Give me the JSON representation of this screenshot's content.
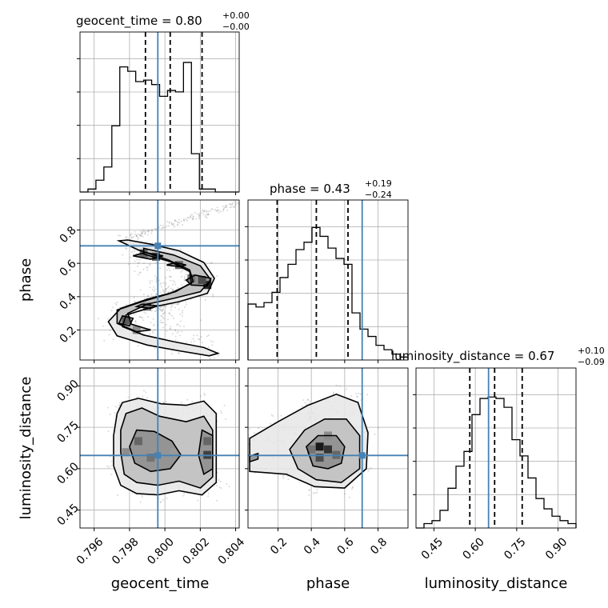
{
  "colors": {
    "truth": "#4682b4",
    "density": "#000000",
    "grid": "#b0b0b0"
  },
  "chart_data": {
    "type": "corner",
    "parameters": [
      "geocent_time",
      "phase",
      "luminosity_distance"
    ],
    "truths": {
      "geocent_time": 0.7996,
      "phase": 0.705,
      "luminosity_distance": 0.648
    },
    "ranges": {
      "geocent_time": [
        0.7952,
        0.8042
      ],
      "phase": [
        0.02,
        0.98
      ],
      "luminosity_distance": [
        0.385,
        0.965
      ]
    },
    "ticks": {
      "geocent_time": [
        "0.796",
        "0.798",
        "0.800",
        "0.802",
        "0.804"
      ],
      "phase": [
        "0.2",
        "0.4",
        "0.6",
        "0.8"
      ],
      "luminosity_distance": [
        "0.45",
        "0.60",
        "0.75",
        "0.90"
      ]
    },
    "titles": [
      {
        "param": "geocent_time",
        "name": "geocent_time",
        "median": "0.80",
        "plus": "+0.00",
        "minus": "−0.00"
      },
      {
        "param": "phase",
        "name": "phase",
        "median": "0.43",
        "plus": "+0.19",
        "minus": "−0.24"
      },
      {
        "param": "luminosity_distance",
        "name": "luminosity_distance",
        "median": "0.67",
        "plus": "+0.10",
        "minus": "−0.09"
      }
    ],
    "quantiles": {
      "geocent_time": [
        0.7989,
        0.8003,
        0.8021
      ],
      "phase": [
        0.195,
        0.43,
        0.62
      ],
      "luminosity_distance": [
        0.58,
        0.67,
        0.77
      ]
    },
    "histograms": {
      "geocent_time": {
        "edges": [
          0.7952,
          0.79565,
          0.7961,
          0.79655,
          0.797,
          0.79745,
          0.7979,
          0.79835,
          0.7988,
          0.79925,
          0.7997,
          0.80015,
          0.8006,
          0.80105,
          0.8015,
          0.80195,
          0.8024,
          0.80285,
          0.8033,
          0.80375,
          0.8042
        ],
        "counts": [
          0,
          0.02,
          0.08,
          0.17,
          0.45,
          0.85,
          0.82,
          0.75,
          0.76,
          0.73,
          0.65,
          0.69,
          0.68,
          0.88,
          0.26,
          0.02,
          0.02,
          0,
          0,
          0
        ]
      },
      "phase": {
        "edges": [
          0.02,
          0.068,
          0.116,
          0.164,
          0.212,
          0.26,
          0.308,
          0.356,
          0.404,
          0.452,
          0.5,
          0.548,
          0.596,
          0.644,
          0.692,
          0.74,
          0.788,
          0.836,
          0.884,
          0.932,
          0.98
        ],
        "counts": [
          0.38,
          0.36,
          0.39,
          0.46,
          0.56,
          0.65,
          0.75,
          0.8,
          0.9,
          0.84,
          0.76,
          0.69,
          0.65,
          0.32,
          0.21,
          0.16,
          0.1,
          0.07,
          0.04,
          0.02
        ]
      },
      "luminosity_distance": {
        "edges": [
          0.385,
          0.414,
          0.443,
          0.472,
          0.501,
          0.53,
          0.559,
          0.588,
          0.617,
          0.646,
          0.675,
          0.704,
          0.733,
          0.762,
          0.791,
          0.82,
          0.849,
          0.878,
          0.907,
          0.936,
          0.965
        ],
        "counts": [
          0,
          0.03,
          0.05,
          0.12,
          0.27,
          0.42,
          0.52,
          0.77,
          0.88,
          0.89,
          0.88,
          0.82,
          0.6,
          0.49,
          0.34,
          0.2,
          0.13,
          0.08,
          0.05,
          0.03
        ]
      }
    },
    "contours": {
      "phase_vs_geocent_time": [
        {
          "closed": true,
          "points": [
            [
              0.7979,
              0.74
            ],
            [
              0.7992,
              0.715
            ],
            [
              0.8008,
              0.675
            ],
            [
              0.8022,
              0.605
            ],
            [
              0.8028,
              0.51
            ],
            [
              0.8024,
              0.42
            ],
            [
              0.8008,
              0.37
            ],
            [
              0.7992,
              0.335
            ],
            [
              0.7978,
              0.29
            ],
            [
              0.7976,
              0.22
            ],
            [
              0.7988,
              0.17
            ],
            [
              0.8005,
              0.13
            ],
            [
              0.8022,
              0.095
            ],
            [
              0.803,
              0.06
            ],
            [
              0.8025,
              0.045
            ],
            [
              0.8008,
              0.075
            ],
            [
              0.799,
              0.11
            ],
            [
              0.7973,
              0.165
            ],
            [
              0.7968,
              0.25
            ],
            [
              0.7975,
              0.33
            ],
            [
              0.799,
              0.385
            ],
            [
              0.8006,
              0.43
            ],
            [
              0.8016,
              0.49
            ],
            [
              0.8014,
              0.56
            ],
            [
              0.8002,
              0.62
            ],
            [
              0.7985,
              0.68
            ],
            [
              0.7974,
              0.735
            ]
          ]
        },
        {
          "closed": true,
          "points": [
            [
              0.7988,
              0.69
            ],
            [
              0.8005,
              0.65
            ],
            [
              0.802,
              0.585
            ],
            [
              0.8026,
              0.5
            ],
            [
              0.802,
              0.43
            ],
            [
              0.8005,
              0.39
            ],
            [
              0.799,
              0.355
            ],
            [
              0.7979,
              0.3
            ],
            [
              0.7981,
              0.235
            ],
            [
              0.7992,
              0.2
            ],
            [
              0.7984,
              0.19
            ],
            [
              0.7973,
              0.24
            ],
            [
              0.7973,
              0.32
            ],
            [
              0.7987,
              0.37
            ],
            [
              0.8003,
              0.42
            ],
            [
              0.8015,
              0.48
            ],
            [
              0.8014,
              0.55
            ],
            [
              0.8003,
              0.61
            ],
            [
              0.7988,
              0.655
            ]
          ]
        },
        {
          "closed": true,
          "points": [
            [
              0.7989,
              0.665
            ],
            [
              0.7999,
              0.645
            ],
            [
              0.7992,
              0.625
            ],
            [
              0.7982,
              0.645
            ]
          ]
        },
        {
          "closed": true,
          "points": [
            [
              0.8017,
              0.53
            ],
            [
              0.8026,
              0.51
            ],
            [
              0.8024,
              0.465
            ],
            [
              0.8015,
              0.47
            ],
            [
              0.8012,
              0.5
            ]
          ]
        },
        {
          "closed": true,
          "points": [
            [
              0.7976,
              0.285
            ],
            [
              0.7982,
              0.27
            ],
            [
              0.798,
              0.225
            ],
            [
              0.7974,
              0.24
            ]
          ]
        },
        {
          "closed": true,
          "points": [
            [
              0.8006,
              0.605
            ],
            [
              0.8012,
              0.59
            ],
            [
              0.8008,
              0.58
            ],
            [
              0.8001,
              0.59
            ]
          ]
        },
        {
          "closed": true,
          "points": [
            [
              0.7987,
              0.355
            ],
            [
              0.7996,
              0.345
            ],
            [
              0.7992,
              0.33
            ],
            [
              0.7984,
              0.34
            ]
          ]
        }
      ],
      "luminosity_distance_vs_geocent_time": [
        {
          "closed": true,
          "points": [
            [
              0.7976,
              0.84
            ],
            [
              0.7985,
              0.855
            ],
            [
              0.7998,
              0.835
            ],
            [
              0.8012,
              0.83
            ],
            [
              0.8022,
              0.845
            ],
            [
              0.8029,
              0.8
            ],
            [
              0.8029,
              0.55
            ],
            [
              0.8021,
              0.505
            ],
            [
              0.8008,
              0.52
            ],
            [
              0.7996,
              0.505
            ],
            [
              0.7984,
              0.51
            ],
            [
              0.7975,
              0.54
            ],
            [
              0.7971,
              0.61
            ],
            [
              0.7971,
              0.72
            ],
            [
              0.7973,
              0.8
            ]
          ]
        },
        {
          "closed": true,
          "points": [
            [
              0.7978,
              0.8
            ],
            [
              0.7987,
              0.82
            ],
            [
              0.7997,
              0.79
            ],
            [
              0.8012,
              0.77
            ],
            [
              0.8022,
              0.79
            ],
            [
              0.8027,
              0.74
            ],
            [
              0.8027,
              0.57
            ],
            [
              0.802,
              0.53
            ],
            [
              0.8008,
              0.555
            ],
            [
              0.7996,
              0.54
            ],
            [
              0.7984,
              0.55
            ],
            [
              0.7977,
              0.58
            ],
            [
              0.7975,
              0.66
            ],
            [
              0.7975,
              0.74
            ]
          ]
        },
        {
          "closed": true,
          "points": [
            [
              0.7984,
              0.74
            ],
            [
              0.7994,
              0.735
            ],
            [
              0.8004,
              0.7
            ],
            [
              0.8009,
              0.65
            ],
            [
              0.8003,
              0.6
            ],
            [
              0.7992,
              0.59
            ],
            [
              0.7983,
              0.62
            ],
            [
              0.798,
              0.68
            ]
          ]
        },
        {
          "closed": true,
          "points": [
            [
              0.8021,
              0.74
            ],
            [
              0.8027,
              0.72
            ],
            [
              0.8027,
              0.6
            ],
            [
              0.8022,
              0.58
            ],
            [
              0.8019,
              0.65
            ]
          ]
        }
      ],
      "luminosity_distance_vs_phase": [
        {
          "closed": true,
          "points": [
            [
              0.03,
              0.71
            ],
            [
              0.2,
              0.77
            ],
            [
              0.38,
              0.83
            ],
            [
              0.55,
              0.87
            ],
            [
              0.68,
              0.84
            ],
            [
              0.74,
              0.73
            ],
            [
              0.73,
              0.6
            ],
            [
              0.6,
              0.53
            ],
            [
              0.42,
              0.535
            ],
            [
              0.25,
              0.58
            ],
            [
              0.03,
              0.59
            ]
          ]
        },
        {
          "closed": true,
          "points": [
            [
              0.27,
              0.67
            ],
            [
              0.36,
              0.74
            ],
            [
              0.48,
              0.78
            ],
            [
              0.61,
              0.78
            ],
            [
              0.69,
              0.72
            ],
            [
              0.69,
              0.6
            ],
            [
              0.58,
              0.55
            ],
            [
              0.43,
              0.56
            ],
            [
              0.32,
              0.6
            ]
          ]
        },
        {
          "closed": true,
          "points": [
            [
              0.37,
              0.68
            ],
            [
              0.44,
              0.72
            ],
            [
              0.55,
              0.72
            ],
            [
              0.6,
              0.68
            ],
            [
              0.58,
              0.62
            ],
            [
              0.5,
              0.6
            ],
            [
              0.41,
              0.61
            ]
          ]
        },
        {
          "closed": true,
          "points": [
            [
              0.03,
              0.645
            ],
            [
              0.08,
              0.655
            ],
            [
              0.08,
              0.635
            ],
            [
              0.03,
              0.625
            ]
          ]
        }
      ]
    },
    "density_blocks": {
      "phase_vs_geocent_time": [
        [
          0.8024,
          0.47,
          0.85
        ],
        [
          0.8021,
          0.5,
          0.7
        ],
        [
          0.7995,
          0.64,
          0.7
        ],
        [
          0.7988,
          0.66,
          0.6
        ],
        [
          0.8008,
          0.59,
          0.6
        ],
        [
          0.7978,
          0.26,
          0.65
        ],
        [
          0.7984,
          0.2,
          0.45
        ],
        [
          0.799,
          0.34,
          0.55
        ],
        [
          0.8015,
          0.51,
          0.55
        ]
      ],
      "luminosity_distance_vs_geocent_time": [
        [
          0.7985,
          0.7,
          0.6
        ],
        [
          0.7992,
          0.64,
          0.55
        ],
        [
          0.8024,
          0.65,
          0.75
        ],
        [
          0.8024,
          0.7,
          0.6
        ],
        [
          0.7978,
          0.66,
          0.45
        ],
        [
          0.8005,
          0.66,
          0.4
        ]
      ],
      "luminosity_distance_vs_phase": [
        [
          0.45,
          0.68,
          0.9
        ],
        [
          0.5,
          0.67,
          0.8
        ],
        [
          0.45,
          0.64,
          0.7
        ],
        [
          0.55,
          0.65,
          0.6
        ],
        [
          0.4,
          0.67,
          0.55
        ],
        [
          0.5,
          0.72,
          0.45
        ]
      ]
    }
  }
}
